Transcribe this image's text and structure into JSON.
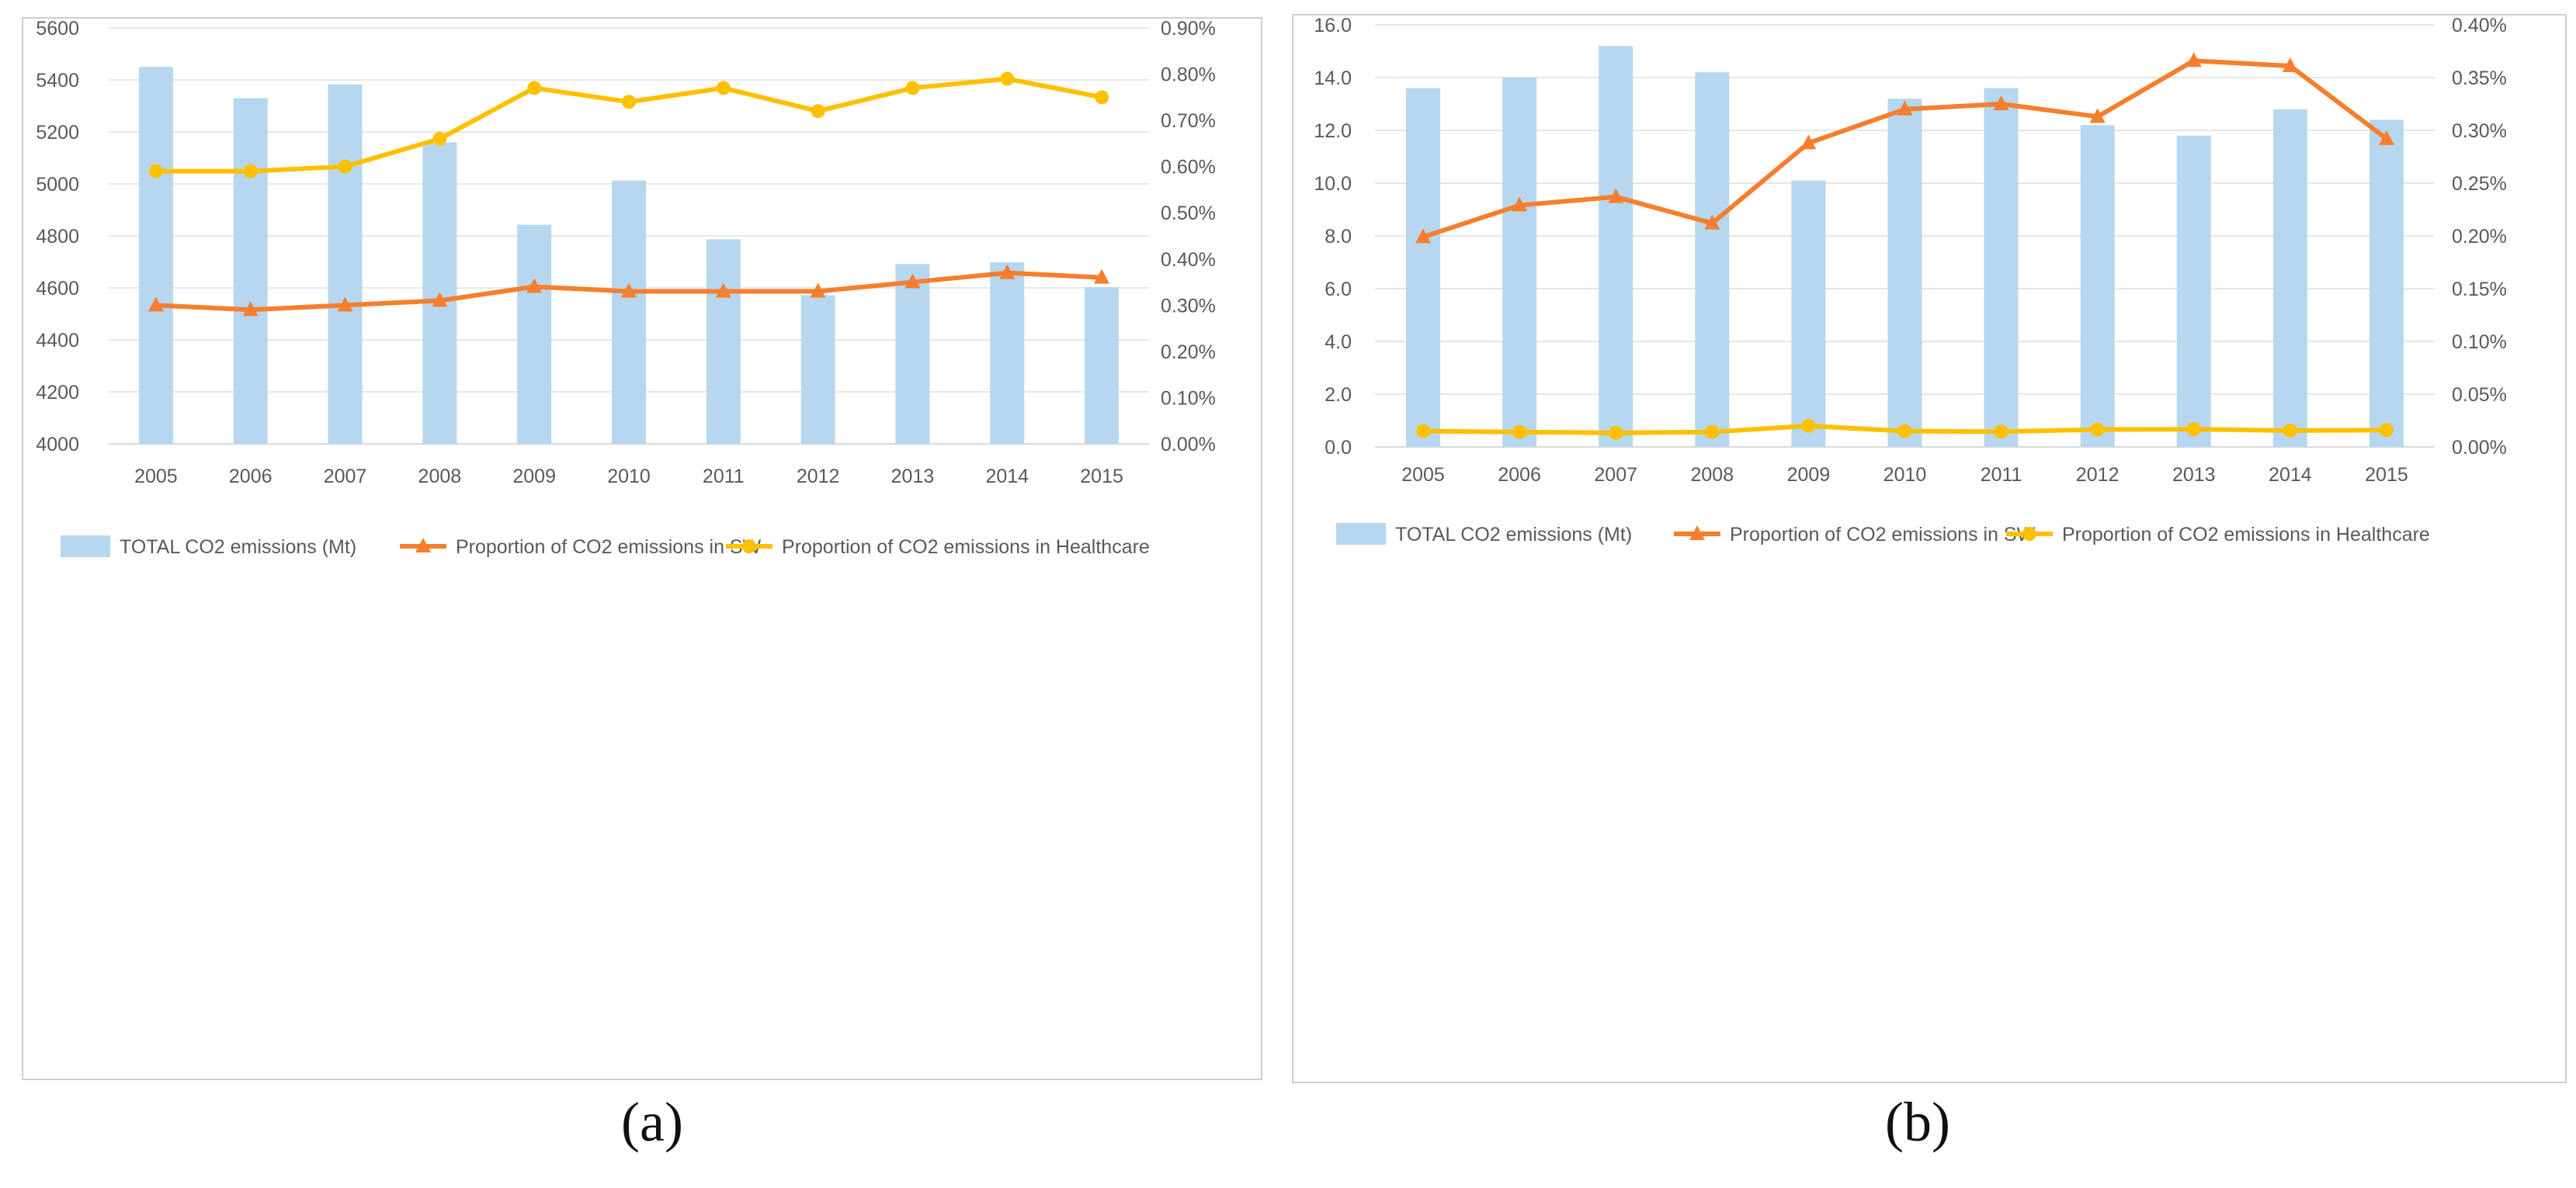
{
  "captions": [
    "(a)",
    "(b)"
  ],
  "colors": {
    "bar": "#b6d7ef",
    "sw": "#f57f2e",
    "healthcare": "#ffc000",
    "grid": "#e6e6e6",
    "text": "#595959"
  },
  "chart_data": [
    {
      "type": "bar",
      "categories": [
        "2005",
        "2006",
        "2007",
        "2008",
        "2009",
        "2010",
        "2011",
        "2012",
        "2013",
        "2014",
        "2015"
      ],
      "series": [
        {
          "name": "TOTAL CO2 emissions (Mt)",
          "type": "bar",
          "axis": "left",
          "values": [
            5450,
            5330,
            5383,
            5160,
            4843,
            5013,
            4787,
            4572,
            4692,
            4698,
            4603
          ]
        },
        {
          "name": "Proportion of CO2 emissions in SW",
          "type": "line",
          "marker": "triangle",
          "axis": "right",
          "values": [
            0.3,
            0.29,
            0.3,
            0.31,
            0.34,
            0.33,
            0.33,
            0.33,
            0.35,
            0.37,
            0.36
          ]
        },
        {
          "name": "Proportion of CO2 emissions in Healthcare",
          "type": "line",
          "marker": "circle",
          "axis": "right",
          "values": [
            0.59,
            0.59,
            0.6,
            0.66,
            0.77,
            0.74,
            0.77,
            0.72,
            0.77,
            0.79,
            0.75
          ]
        }
      ],
      "ylim": [
        4000,
        5600
      ],
      "yticks": [
        "4000",
        "4200",
        "4400",
        "4600",
        "4800",
        "5000",
        "5200",
        "5400",
        "5600"
      ],
      "y2lim": [
        0,
        0.9
      ],
      "y2ticks": [
        "0.00%",
        "0.10%",
        "0.20%",
        "0.30%",
        "0.40%",
        "0.50%",
        "0.60%",
        "0.70%",
        "0.80%",
        "0.90%"
      ],
      "legend": "bottom",
      "grid": true
    },
    {
      "type": "bar",
      "categories": [
        "2005",
        "2006",
        "2007",
        "2008",
        "2009",
        "2010",
        "2011",
        "2012",
        "2013",
        "2014",
        "2015"
      ],
      "series": [
        {
          "name": "TOTAL CO2 emissions (Mt)",
          "type": "bar",
          "axis": "left",
          "values": [
            13.6,
            14.0,
            15.2,
            14.2,
            10.1,
            13.2,
            13.6,
            12.2,
            11.8,
            12.8,
            12.4
          ]
        },
        {
          "name": "Proportion of CO2 emissions in SW",
          "type": "line",
          "marker": "triangle",
          "axis": "right",
          "values": [
            0.199,
            0.229,
            0.237,
            0.212,
            0.288,
            0.32,
            0.325,
            0.313,
            0.366,
            0.361,
            0.292
          ]
        },
        {
          "name": "Proportion of CO2 emissions in Healthcare",
          "type": "line",
          "marker": "circle",
          "axis": "right",
          "values": [
            0.015,
            0.0142,
            0.0133,
            0.0142,
            0.02,
            0.015,
            0.0145,
            0.0165,
            0.0168,
            0.0155,
            0.016
          ]
        }
      ],
      "ylim": [
        0,
        16
      ],
      "yticks": [
        "0.0",
        "2.0",
        "4.0",
        "6.0",
        "8.0",
        "10.0",
        "12.0",
        "14.0",
        "16.0"
      ],
      "y2lim": [
        0,
        0.4
      ],
      "y2ticks": [
        "0.00%",
        "0.05%",
        "0.10%",
        "0.15%",
        "0.20%",
        "0.25%",
        "0.30%",
        "0.35%",
        "0.40%"
      ],
      "legend": "bottom",
      "grid": true
    }
  ]
}
